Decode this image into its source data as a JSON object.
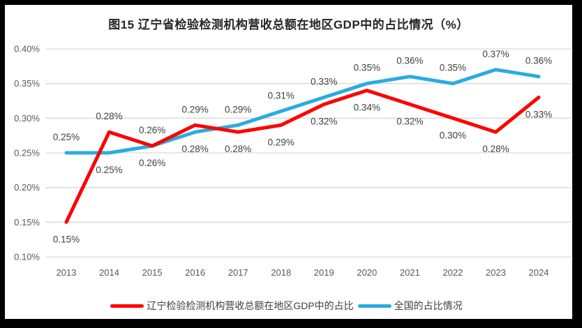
{
  "title": "图15 辽宁省检验检测机构营收总额在地区GDP中的占比情况（%）",
  "colors": {
    "frame": "#000000",
    "background": "#FFFFFF",
    "gridline": "#D9D9D9",
    "axis_text": "#595959",
    "data_label_text": "#404040",
    "title_text": "#262626",
    "series_liaoning": "#FF0000",
    "series_national": "#29ABE2"
  },
  "chart_data": {
    "type": "line",
    "title": "图15 辽宁省检验检测机构营收总额在地区GDP中的占比情况（%）",
    "categories": [
      "2013",
      "2014",
      "2015",
      "2016",
      "2017",
      "2018",
      "2019",
      "2020",
      "2021",
      "2022",
      "2023",
      "2024"
    ],
    "series": [
      {
        "name": "辽宁检验检测机构营收总额在地区GDP中的占比",
        "color": "#FF0000",
        "values": [
          0.15,
          0.28,
          0.26,
          0.29,
          0.28,
          0.29,
          0.32,
          0.34,
          0.32,
          0.3,
          0.28,
          0.33
        ],
        "labels": [
          "0.15%",
          "0.28%",
          "0.26%",
          "0.29%",
          "0.28%",
          "0.29%",
          "0.32%",
          "0.34%",
          "0.32%",
          "0.30%",
          "0.28%",
          "0.33%"
        ],
        "label_position": [
          "below",
          "above",
          "above",
          "above",
          "below",
          "below",
          "below",
          "below",
          "below",
          "below",
          "below",
          "below"
        ]
      },
      {
        "name": "全国的占比情况",
        "color": "#29ABE2",
        "values": [
          0.25,
          0.25,
          0.26,
          0.28,
          0.29,
          0.31,
          0.33,
          0.35,
          0.36,
          0.35,
          0.37,
          0.36
        ],
        "labels": [
          "0.25%",
          "0.25%",
          "0.26%",
          "0.28%",
          "0.29%",
          "0.31%",
          "0.33%",
          "0.35%",
          "0.36%",
          "0.35%",
          "0.37%",
          "0.36%"
        ],
        "label_position": [
          "above",
          "below",
          "below",
          "below",
          "above",
          "above",
          "above",
          "above",
          "above",
          "above",
          "above",
          "above"
        ]
      }
    ],
    "y_axis": {
      "min": 0.1,
      "max": 0.4,
      "step": 0.05,
      "ticks": [
        {
          "value": 0.4,
          "label": "0.40%"
        },
        {
          "value": 0.35,
          "label": "0.35%"
        },
        {
          "value": 0.3,
          "label": "0.30%"
        },
        {
          "value": 0.25,
          "label": "0.25%"
        },
        {
          "value": 0.2,
          "label": "0.20%"
        },
        {
          "value": 0.15,
          "label": "0.15%"
        },
        {
          "value": 0.1,
          "label": "0.10%"
        }
      ]
    },
    "grid": true,
    "legend_position": "bottom"
  }
}
